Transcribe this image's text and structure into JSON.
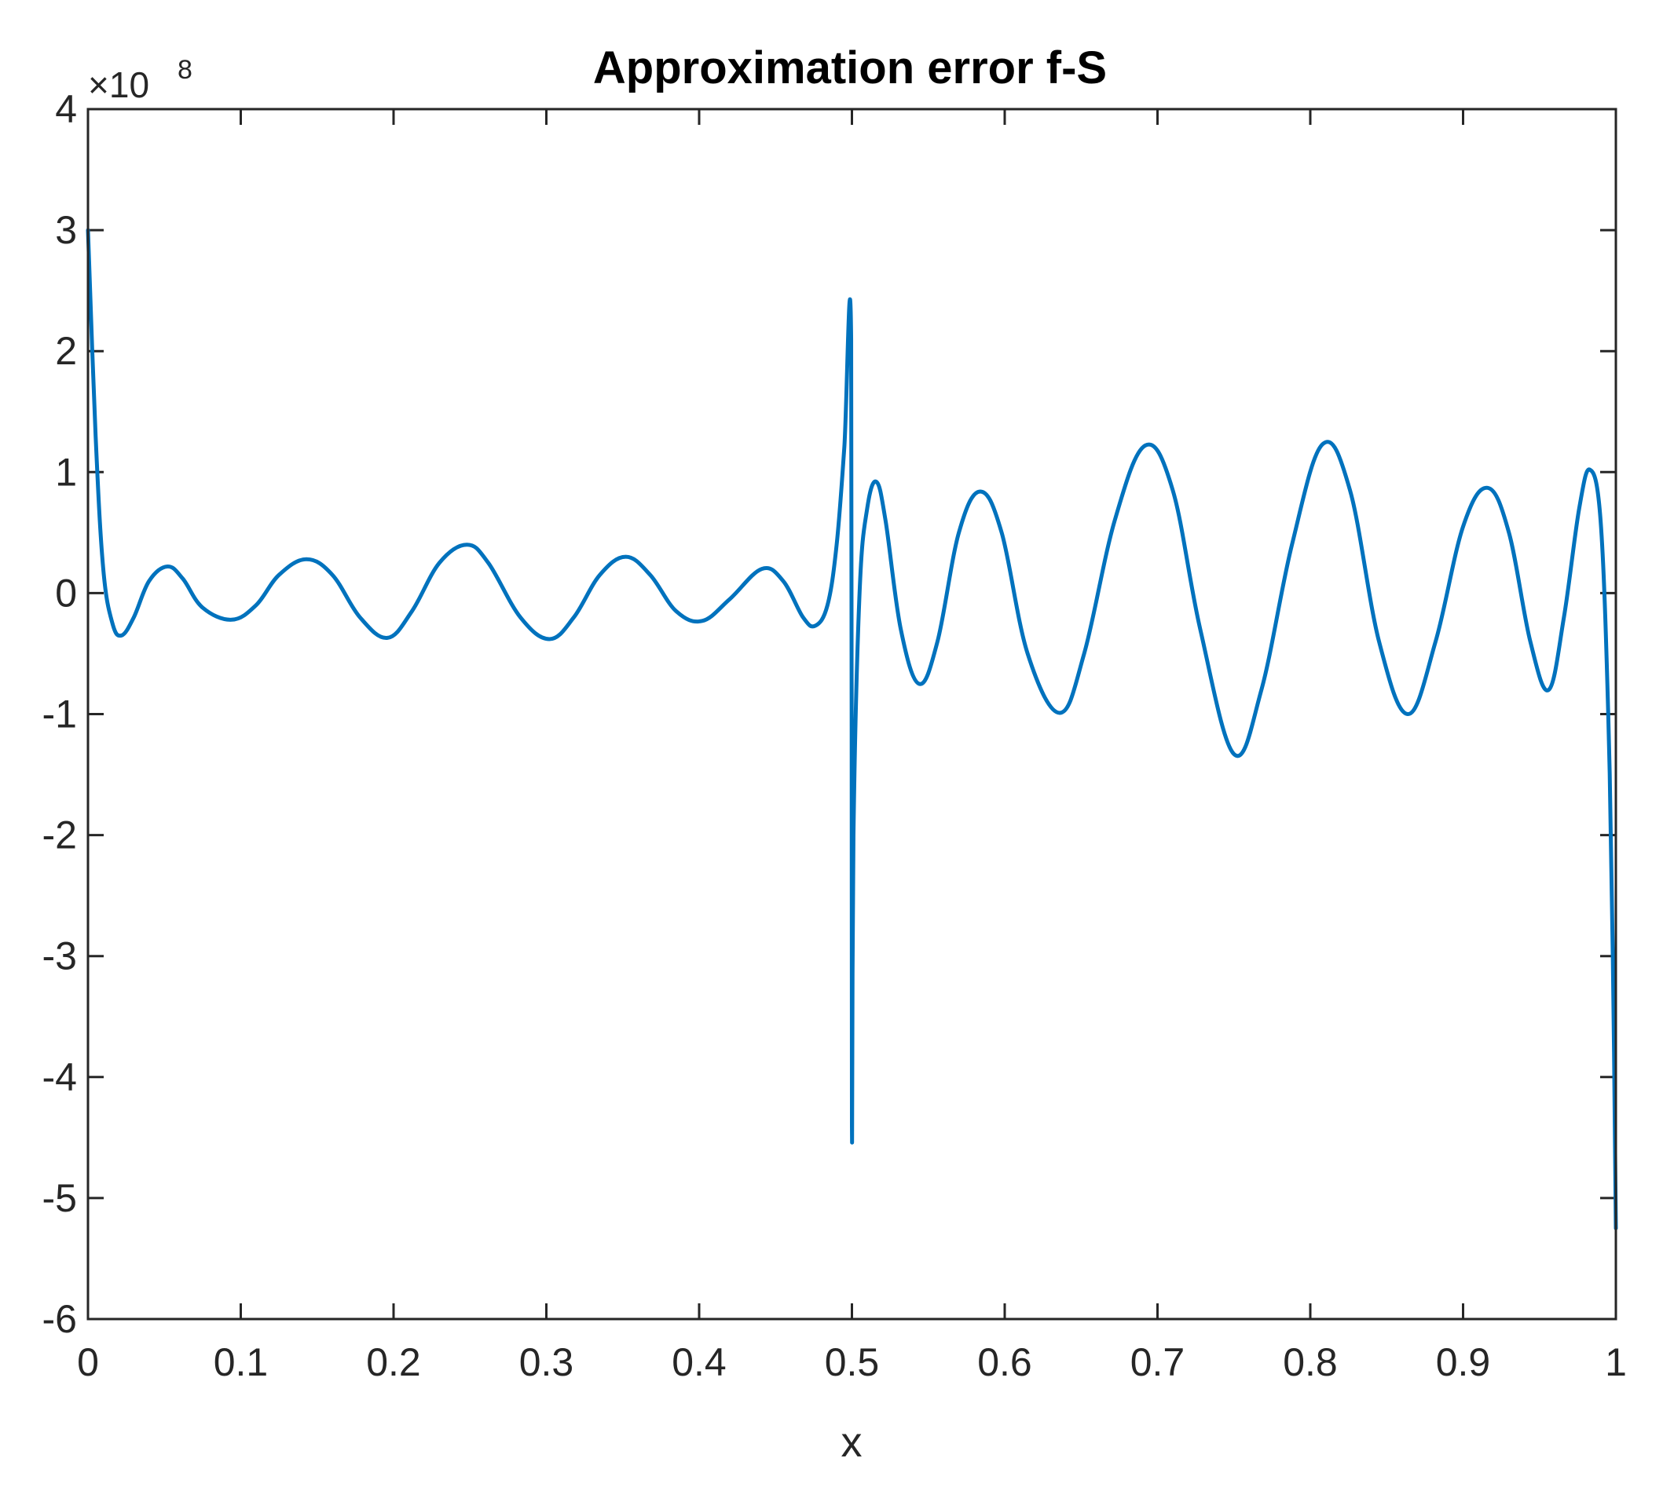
{
  "chart_data": {
    "type": "line",
    "title": "Approximation error f-S",
    "xlabel": "x",
    "ylabel": "",
    "y_exponent_label": "×10",
    "y_exponent_power": "8",
    "xlim": [
      0,
      1
    ],
    "ylim": [
      -6,
      4
    ],
    "y_scale_note": "y values in units of 10^8",
    "x_ticks": [
      0,
      0.1,
      0.2,
      0.3,
      0.4,
      0.5,
      0.6,
      0.7,
      0.8,
      0.9,
      1
    ],
    "x_tick_labels": [
      "0",
      "0.1",
      "0.2",
      "0.3",
      "0.4",
      "0.5",
      "0.6",
      "0.7",
      "0.8",
      "0.9",
      "1"
    ],
    "y_ticks": [
      4,
      3,
      2,
      1,
      0,
      -1,
      -2,
      -3,
      -4,
      -5,
      -6
    ],
    "y_tick_labels": [
      "4",
      "3",
      "2",
      "1",
      "0",
      "-1",
      "-2",
      "-3",
      "-4",
      "-5",
      "-6"
    ],
    "grid": false,
    "box": true,
    "series_color": "#0072BD",
    "series": [
      {
        "points": [
          [
            0.0,
            3.0
          ],
          [
            0.005,
            1.3
          ],
          [
            0.01,
            0.2
          ],
          [
            0.016,
            -0.25
          ],
          [
            0.022,
            -0.35
          ],
          [
            0.03,
            -0.2
          ],
          [
            0.04,
            0.1
          ],
          [
            0.052,
            0.22
          ],
          [
            0.062,
            0.12
          ],
          [
            0.075,
            -0.12
          ],
          [
            0.094,
            -0.22
          ],
          [
            0.11,
            -0.1
          ],
          [
            0.125,
            0.15
          ],
          [
            0.143,
            0.28
          ],
          [
            0.16,
            0.15
          ],
          [
            0.178,
            -0.2
          ],
          [
            0.196,
            -0.37
          ],
          [
            0.212,
            -0.15
          ],
          [
            0.23,
            0.25
          ],
          [
            0.248,
            0.4
          ],
          [
            0.262,
            0.25
          ],
          [
            0.283,
            -0.2
          ],
          [
            0.302,
            -0.38
          ],
          [
            0.318,
            -0.2
          ],
          [
            0.335,
            0.15
          ],
          [
            0.352,
            0.3
          ],
          [
            0.368,
            0.15
          ],
          [
            0.385,
            -0.15
          ],
          [
            0.402,
            -0.23
          ],
          [
            0.42,
            -0.05
          ],
          [
            0.441,
            0.2
          ],
          [
            0.455,
            0.1
          ],
          [
            0.468,
            -0.2
          ],
          [
            0.476,
            -0.27
          ],
          [
            0.484,
            -0.1
          ],
          [
            0.49,
            0.4
          ],
          [
            0.495,
            1.2
          ],
          [
            0.4995,
            2.1
          ],
          [
            0.5,
            -4.4
          ],
          [
            0.501,
            -2.0
          ],
          [
            0.505,
            0.0
          ],
          [
            0.51,
            0.7
          ],
          [
            0.516,
            0.92
          ],
          [
            0.522,
            0.6
          ],
          [
            0.532,
            -0.3
          ],
          [
            0.544,
            -0.75
          ],
          [
            0.556,
            -0.4
          ],
          [
            0.57,
            0.5
          ],
          [
            0.584,
            0.84
          ],
          [
            0.598,
            0.5
          ],
          [
            0.615,
            -0.5
          ],
          [
            0.636,
            -0.99
          ],
          [
            0.652,
            -0.5
          ],
          [
            0.672,
            0.6
          ],
          [
            0.692,
            1.22
          ],
          [
            0.71,
            0.85
          ],
          [
            0.728,
            -0.3
          ],
          [
            0.75,
            -1.33
          ],
          [
            0.768,
            -0.8
          ],
          [
            0.788,
            0.4
          ],
          [
            0.808,
            1.23
          ],
          [
            0.826,
            0.85
          ],
          [
            0.845,
            -0.4
          ],
          [
            0.864,
            -1.0
          ],
          [
            0.882,
            -0.4
          ],
          [
            0.9,
            0.55
          ],
          [
            0.916,
            0.87
          ],
          [
            0.93,
            0.5
          ],
          [
            0.944,
            -0.4
          ],
          [
            0.956,
            -0.8
          ],
          [
            0.966,
            -0.2
          ],
          [
            0.976,
            0.7
          ],
          [
            0.983,
            1.02
          ],
          [
            0.99,
            0.6
          ],
          [
            0.995,
            -1.0
          ],
          [
            0.998,
            -3.0
          ],
          [
            1.0,
            -5.25
          ]
        ]
      }
    ]
  }
}
